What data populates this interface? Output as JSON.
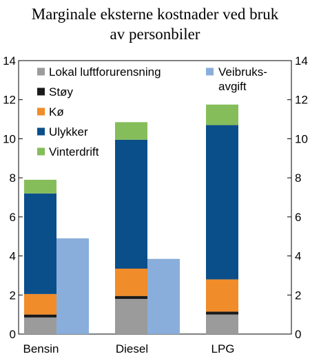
{
  "chart_data": {
    "type": "bar",
    "title_lines": [
      "Marginale eksterne kostnader ved bruk",
      "av personbiler"
    ],
    "categories": [
      "Bensin",
      "Diesel",
      "LPG"
    ],
    "stack_series": [
      {
        "name": "Lokal luftforurensning",
        "color": "#9b9b9b",
        "values": [
          0.85,
          1.8,
          1.0
        ]
      },
      {
        "name": "Støy",
        "color": "#1a1a1a",
        "values": [
          0.15,
          0.15,
          0.15
        ]
      },
      {
        "name": "Kø",
        "color": "#f08c2a",
        "values": [
          1.05,
          1.4,
          1.65
        ]
      },
      {
        "name": "Ulykker",
        "color": "#0b4f8a",
        "values": [
          5.15,
          6.6,
          7.9
        ]
      },
      {
        "name": "Vinterdrift",
        "color": "#86bd5b",
        "values": [
          0.7,
          0.9,
          1.05
        ]
      }
    ],
    "side_series": {
      "name": "Veibruks-\navgift",
      "name_lines": [
        "Veibruks-",
        "avgift"
      ],
      "color": "#8aaedb",
      "values": [
        4.9,
        3.85,
        null
      ]
    },
    "ylim": [
      0,
      14
    ],
    "yticks": [
      "0",
      "2",
      "4",
      "6",
      "8",
      "10",
      "12",
      "14"
    ],
    "ytick_values": [
      0,
      2,
      4,
      6,
      8,
      10,
      12,
      14
    ],
    "legend_placement": "top-left",
    "grid": false
  }
}
